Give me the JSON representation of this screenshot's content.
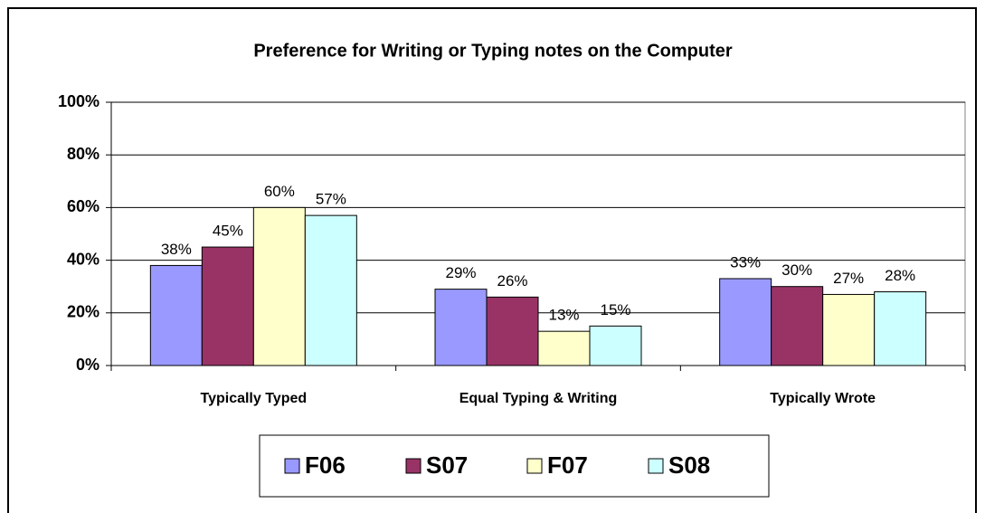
{
  "chart_data": {
    "type": "bar",
    "title": "Preference for Writing or Typing notes on the Computer",
    "categories": [
      "Typically Typed",
      "Equal Typing & Writing",
      "Typically Wrote"
    ],
    "series": [
      {
        "name": "F06",
        "color": "#9999ff",
        "values": [
          38,
          29,
          33
        ],
        "value_labels": [
          "38%",
          "29%",
          "33%"
        ]
      },
      {
        "name": "S07",
        "color": "#993366",
        "values": [
          45,
          26,
          30
        ],
        "value_labels": [
          "45%",
          "26%",
          "30%"
        ]
      },
      {
        "name": "F07",
        "color": "#ffffcc",
        "values": [
          60,
          13,
          27
        ],
        "value_labels": [
          "60%",
          "13%",
          "27%"
        ]
      },
      {
        "name": "S08",
        "color": "#ccffff",
        "values": [
          57,
          15,
          28
        ],
        "value_labels": [
          "57%",
          "15%",
          "28%"
        ]
      }
    ],
    "ylim": [
      0,
      100
    ],
    "yticks": [
      {
        "value": 0,
        "label": "0%"
      },
      {
        "value": 20,
        "label": "20%"
      },
      {
        "value": 40,
        "label": "40%"
      },
      {
        "value": 60,
        "label": "60%"
      },
      {
        "value": 80,
        "label": "80%"
      },
      {
        "value": 100,
        "label": "100%"
      }
    ],
    "grid": true,
    "legend": "bottom"
  }
}
